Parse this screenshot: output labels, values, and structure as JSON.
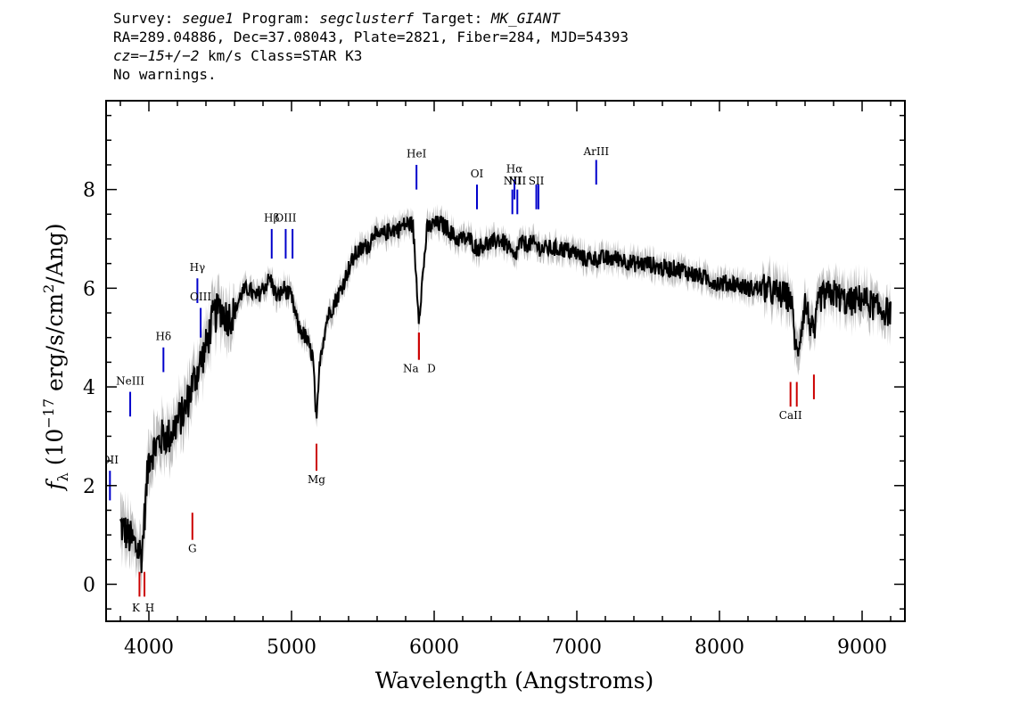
{
  "header": {
    "line1_survey_key": "Survey: ",
    "line1_survey": "segue1",
    "line1_program_key": " Program: ",
    "line1_program": "segclusterf",
    "line1_target_key": " Target: ",
    "line1_target": "MK_GIANT",
    "line2": "RA=289.04886, Dec=37.08043, Plate=2821, Fiber=284, MJD=54393",
    "line3_cz": "cz=−15+/−2",
    "line3_rest": " km/s Class=STAR K3",
    "line4": "No warnings."
  },
  "chart_data": {
    "type": "line",
    "xlabel": "Wavelength (Angstroms)",
    "ylabel_parts": [
      "f",
      "λ",
      " (10",
      "−17",
      " erg/s/cm",
      "2",
      "/Ang)"
    ],
    "xlim": [
      3700,
      9300
    ],
    "ylim": [
      -0.75,
      9.8
    ],
    "x_ticks": [
      4000,
      5000,
      6000,
      7000,
      8000,
      9000
    ],
    "x_tick_labels": [
      "4000",
      "5000",
      "6000",
      "7000",
      "8000",
      "9000"
    ],
    "y_ticks": [
      0,
      2,
      4,
      6,
      8
    ],
    "y_tick_labels": [
      "0",
      "2",
      "4",
      "6",
      "8"
    ],
    "colors": {
      "flux": "#000000",
      "error_band": "#bdbdbd",
      "emission": "#0000cc",
      "absorption": "#cc0000"
    },
    "spectrum": {
      "x": [
        3800,
        3850,
        3900,
        3950,
        4000,
        4050,
        4100,
        4150,
        4200,
        4250,
        4300,
        4350,
        4400,
        4450,
        4500,
        4550,
        4600,
        4650,
        4700,
        4750,
        4800,
        4850,
        4900,
        4950,
        5000,
        5050,
        5100,
        5150,
        5175,
        5200,
        5250,
        5300,
        5350,
        5400,
        5450,
        5500,
        5550,
        5580,
        5600,
        5650,
        5700,
        5750,
        5800,
        5850,
        5893,
        5950,
        6000,
        6050,
        6100,
        6150,
        6200,
        6250,
        6300,
        6350,
        6400,
        6450,
        6500,
        6563,
        6600,
        6650,
        6700,
        6750,
        6800,
        6900,
        7000,
        7050,
        7100,
        7200,
        7300,
        7400,
        7500,
        7600,
        7700,
        7800,
        7900,
        8000,
        8100,
        8200,
        8300,
        8400,
        8500,
        8542,
        8600,
        8662,
        8700,
        8800,
        8900,
        9000,
        9100,
        9200
      ],
      "y": [
        1.2,
        1.0,
        0.8,
        0.6,
        2.6,
        2.8,
        3.0,
        3.0,
        3.3,
        3.5,
        4.0,
        4.4,
        4.8,
        5.4,
        5.6,
        5.4,
        5.5,
        5.9,
        6.0,
        5.8,
        6.0,
        6.2,
        5.8,
        6.0,
        5.8,
        5.2,
        5.0,
        4.6,
        3.2,
        4.6,
        5.4,
        5.7,
        6.0,
        6.4,
        6.7,
        6.8,
        6.9,
        7.2,
        7.0,
        7.1,
        7.2,
        7.2,
        7.3,
        7.3,
        5.4,
        7.2,
        7.3,
        7.3,
        7.2,
        7.0,
        7.0,
        7.0,
        6.8,
        6.9,
        6.9,
        7.0,
        6.9,
        6.6,
        6.9,
        6.9,
        6.9,
        6.8,
        6.8,
        6.8,
        6.7,
        6.6,
        6.6,
        6.6,
        6.6,
        6.5,
        6.5,
        6.4,
        6.4,
        6.3,
        6.2,
        6.1,
        6.1,
        6.0,
        6.0,
        5.9,
        5.8,
        4.6,
        5.7,
        5.0,
        5.8,
        5.9,
        5.7,
        5.8,
        5.6,
        5.5
      ],
      "noise": 0.18
    },
    "emission_lines": [
      {
        "label": "OII",
        "x": 3727,
        "y_low": 1.7,
        "y_high": 2.3,
        "label_y": 2.45
      },
      {
        "label": "NeIII",
        "x": 3869,
        "y_low": 3.4,
        "y_high": 3.9,
        "label_y": 4.05
      },
      {
        "label": "Hδ",
        "x": 4102,
        "y_low": 4.3,
        "y_high": 4.8,
        "label_y": 4.95
      },
      {
        "label": "Hγ",
        "x": 4340,
        "y_low": 5.7,
        "y_high": 6.2,
        "label_y": 6.35
      },
      {
        "label": "OIII",
        "x": 4363,
        "y_low": 5.0,
        "y_high": 5.6,
        "label_y": 5.75
      },
      {
        "label": "Hβ",
        "x": 4861,
        "y_low": 6.6,
        "y_high": 7.2,
        "label_y": 7.35
      },
      {
        "label": "OIII",
        "x": 4959,
        "y_low": 6.6,
        "y_high": 7.2,
        "label_y": 7.35
      },
      {
        "label": "",
        "x": 5007,
        "y_low": 6.6,
        "y_high": 7.2,
        "label_y": 7.35
      },
      {
        "label": "HeI",
        "x": 5876,
        "y_low": 8.0,
        "y_high": 8.5,
        "label_y": 8.65
      },
      {
        "label": "OI",
        "x": 6300,
        "y_low": 7.6,
        "y_high": 8.1,
        "label_y": 8.25
      },
      {
        "label": "NII",
        "x": 6548,
        "y_low": 7.5,
        "y_high": 8.0,
        "label_y": 8.1
      },
      {
        "label": "Hα",
        "x": 6563,
        "y_low": 7.8,
        "y_high": 8.2,
        "label_y": 8.35
      },
      {
        "label": "NII",
        "x": 6583,
        "y_low": 7.5,
        "y_high": 8.0,
        "label_y": 8.1
      },
      {
        "label": "SII",
        "x": 6716,
        "y_low": 7.6,
        "y_high": 8.1,
        "label_y": 8.1
      },
      {
        "label": "",
        "x": 6731,
        "y_low": 7.6,
        "y_high": 8.1,
        "label_y": 8.1
      },
      {
        "label": "ArIII",
        "x": 7136,
        "y_low": 8.1,
        "y_high": 8.6,
        "label_y": 8.7
      }
    ],
    "absorption_lines": [
      {
        "label": "K",
        "x": 3934,
        "y_low": -0.25,
        "y_high": 0.25,
        "label_y": -0.55
      },
      {
        "label": "H",
        "x": 3969,
        "y_low": -0.25,
        "y_high": 0.25,
        "label_y": -0.55
      },
      {
        "label": "G",
        "x": 4305,
        "y_low": 0.9,
        "y_high": 1.45,
        "label_y": 0.65
      },
      {
        "label": "Mg",
        "x": 5175,
        "y_low": 2.3,
        "y_high": 2.85,
        "label_y": 2.05
      },
      {
        "label": "Na",
        "x": 5893,
        "y_low": 4.55,
        "y_high": 5.1,
        "label_y": 4.3
      },
      {
        "label": "D",
        "x": 5893,
        "y_low": 4.55,
        "y_high": 5.1,
        "label_y": 4.3
      },
      {
        "label": "CaII",
        "x": 8498,
        "y_low": 3.6,
        "y_high": 4.1,
        "label_y": 3.35
      },
      {
        "label": "",
        "x": 8542,
        "y_low": 3.6,
        "y_high": 4.1,
        "label_y": 3.35
      },
      {
        "label": "",
        "x": 8662,
        "y_low": 3.75,
        "y_high": 4.25,
        "label_y": 3.35
      }
    ]
  }
}
